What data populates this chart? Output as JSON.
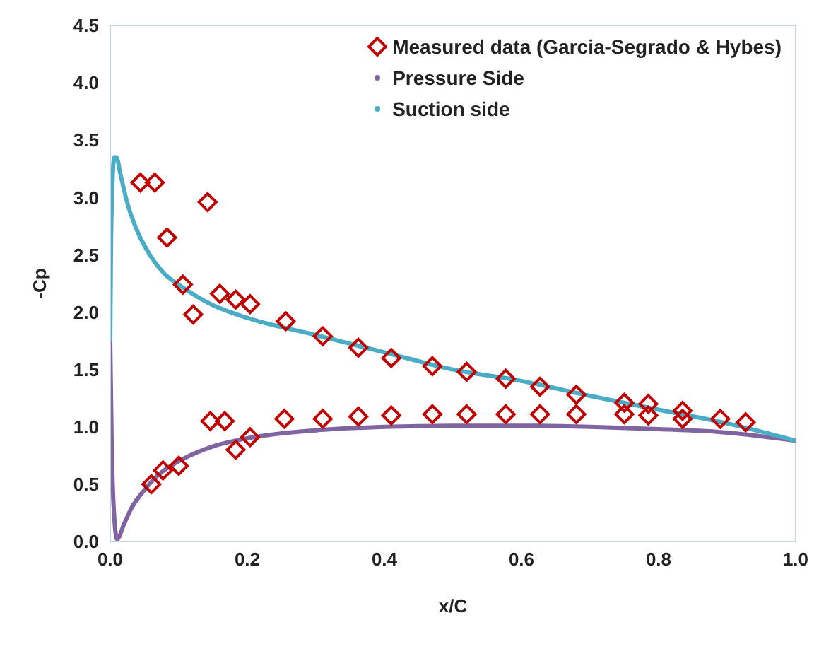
{
  "chart_data": {
    "type": "line",
    "xlabel": "x/C",
    "ylabel": "-Cp",
    "xlim": [
      0,
      1
    ],
    "xticks": [
      {
        "value": 0,
        "label": "0.0"
      },
      {
        "value": 0.2,
        "label": "0.2"
      },
      {
        "value": 0.4,
        "label": "0.4"
      },
      {
        "value": 0.6,
        "label": "0.6"
      },
      {
        "value": 0.8,
        "label": "0.8"
      },
      {
        "value": 1,
        "label": "1.0"
      }
    ],
    "ylim": [
      0,
      4.5
    ],
    "yticks": [
      {
        "value": 0,
        "label": "0.0"
      },
      {
        "value": 0.5,
        "label": "0.5"
      },
      {
        "value": 1,
        "label": "1.0"
      },
      {
        "value": 1.5,
        "label": "1.5"
      },
      {
        "value": 2,
        "label": "2.0"
      },
      {
        "value": 2.5,
        "label": "2.5"
      },
      {
        "value": 3,
        "label": "3.0"
      },
      {
        "value": 3.5,
        "label": "3.5"
      },
      {
        "value": 4,
        "label": "4.0"
      },
      {
        "value": 4.5,
        "label": "4.5"
      }
    ],
    "grid": false,
    "legend": "top right",
    "series": [
      {
        "name": "Measured data (Garcia-Segrado & Hybes)",
        "type": "scatter",
        "marker": "diamond",
        "color": "#c00000",
        "x": [
          0.044,
          0.065,
          0.083,
          0.142,
          0.106,
          0.121,
          0.16,
          0.183,
          0.204,
          0.256,
          0.31,
          0.362,
          0.41,
          0.47,
          0.52,
          0.577,
          0.627,
          0.68,
          0.75,
          0.785,
          0.835,
          0.89,
          0.927,
          0.06,
          0.077,
          0.1,
          0.146,
          0.167,
          0.183,
          0.204,
          0.254,
          0.31,
          0.362,
          0.41,
          0.47,
          0.52,
          0.577,
          0.627,
          0.68,
          0.75,
          0.785,
          0.835
        ],
        "values": [
          3.13,
          3.13,
          2.65,
          2.96,
          2.24,
          1.98,
          2.16,
          2.11,
          2.07,
          1.92,
          1.79,
          1.69,
          1.6,
          1.53,
          1.48,
          1.42,
          1.35,
          1.28,
          1.21,
          1.2,
          1.14,
          1.07,
          1.04,
          0.5,
          0.62,
          0.66,
          1.05,
          1.05,
          0.8,
          0.91,
          1.07,
          1.07,
          1.09,
          1.1,
          1.11,
          1.11,
          1.11,
          1.11,
          1.11,
          1.11,
          1.1,
          1.07
        ]
      },
      {
        "name": "Pressure Side",
        "marker": "none",
        "color": "#8064a2",
        "x": [
          0,
          0.002,
          0.005,
          0.01,
          0.02,
          0.03,
          0.05,
          0.07,
          0.1,
          0.15,
          0.2,
          0.3,
          0.4,
          0.5,
          0.6,
          0.7,
          0.8,
          0.9,
          1.0
        ],
        "values": [
          1.75,
          0.9,
          0.3,
          0.02,
          0.15,
          0.28,
          0.45,
          0.58,
          0.7,
          0.83,
          0.9,
          0.97,
          1.0,
          1.01,
          1.01,
          1.0,
          0.98,
          0.95,
          0.88
        ]
      },
      {
        "name": "Suction side",
        "marker": "none",
        "color": "#4bacc6",
        "x": [
          0,
          0.001,
          0.003,
          0.006,
          0.009,
          0.015,
          0.025,
          0.04,
          0.06,
          0.08,
          0.1,
          0.15,
          0.2,
          0.3,
          0.4,
          0.5,
          0.6,
          0.7,
          0.8,
          0.9,
          1.0
        ],
        "values": [
          1.75,
          2.5,
          3.1,
          3.35,
          3.35,
          3.2,
          2.95,
          2.7,
          2.48,
          2.33,
          2.24,
          2.06,
          1.95,
          1.8,
          1.65,
          1.5,
          1.4,
          1.27,
          1.15,
          1.03,
          0.88
        ]
      }
    ]
  }
}
